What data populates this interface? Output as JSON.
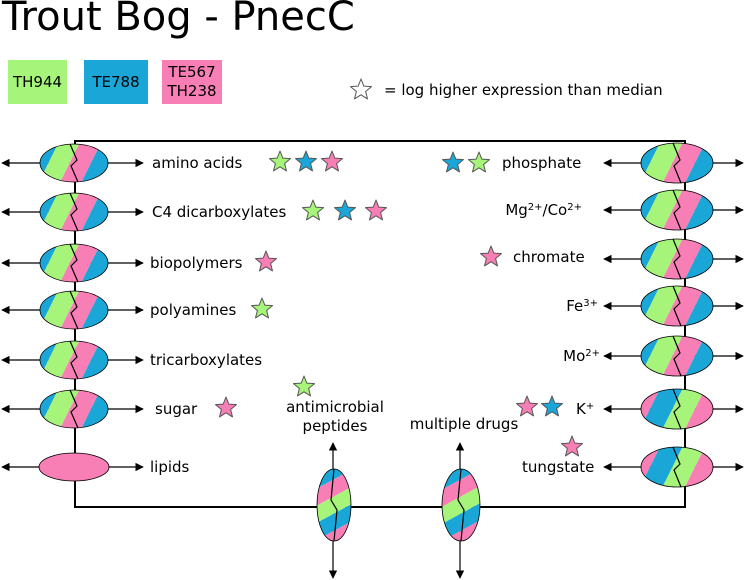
{
  "title": "Trout Bog - PnecC",
  "legend": [
    {
      "label": "TH944",
      "color": "#a6f57a"
    },
    {
      "label": "TE788",
      "color": "#1aa7d8"
    },
    {
      "label": "TE567\nTH238",
      "color": "#f77fb5"
    }
  ],
  "star_legend": "= log higher expression than median",
  "colors": {
    "green": "#a6f57a",
    "blue": "#1aa7d8",
    "pink": "#f77fb5",
    "star_outline": "#555555"
  },
  "transporters_left": [
    {
      "label": "amino acids",
      "stars": [
        "green",
        "blue",
        "pink"
      ],
      "pattern": "tri-blue"
    },
    {
      "label": "C4 dicarboxylates",
      "stars": [
        "green",
        "blue",
        "pink"
      ],
      "pattern": "tri-blue"
    },
    {
      "label": "biopolymers",
      "stars": [
        "pink"
      ],
      "pattern": "tri-blue"
    },
    {
      "label": "polyamines",
      "stars": [
        "green"
      ],
      "pattern": "tri-blue"
    },
    {
      "label": "tricarboxylates",
      "stars": [],
      "pattern": "tri-blue"
    },
    {
      "label": "sugar",
      "stars": [
        "pink"
      ],
      "pattern": "tri-blue"
    },
    {
      "label": "lipids",
      "stars": [],
      "pattern": "pink-only"
    }
  ],
  "transporters_right": [
    {
      "label": "phosphate",
      "stars": [
        "blue",
        "green"
      ],
      "pattern": "tri-blue"
    },
    {
      "label": "Mg2+/Co2+",
      "stars": [],
      "pattern": "tri-blue"
    },
    {
      "label": "chromate",
      "stars": [
        "pink"
      ],
      "pattern": "tri-blue"
    },
    {
      "label": "Fe3+",
      "stars": [],
      "pattern": "tri-blue"
    },
    {
      "label": "Mo2+",
      "stars": [],
      "pattern": "tri-blue"
    },
    {
      "label": "K+",
      "stars": [
        "pink",
        "blue"
      ],
      "pattern": "tri-pink"
    },
    {
      "label": "tungstate",
      "stars": [
        "pink"
      ],
      "pattern": "tri-pink"
    }
  ],
  "transporters_bottom": [
    {
      "label": "antimicrobial\npeptides",
      "stars": [
        "green"
      ],
      "pattern": "tri-blue"
    },
    {
      "label": "multiple drugs",
      "stars": [],
      "pattern": "tri-blue"
    }
  ]
}
